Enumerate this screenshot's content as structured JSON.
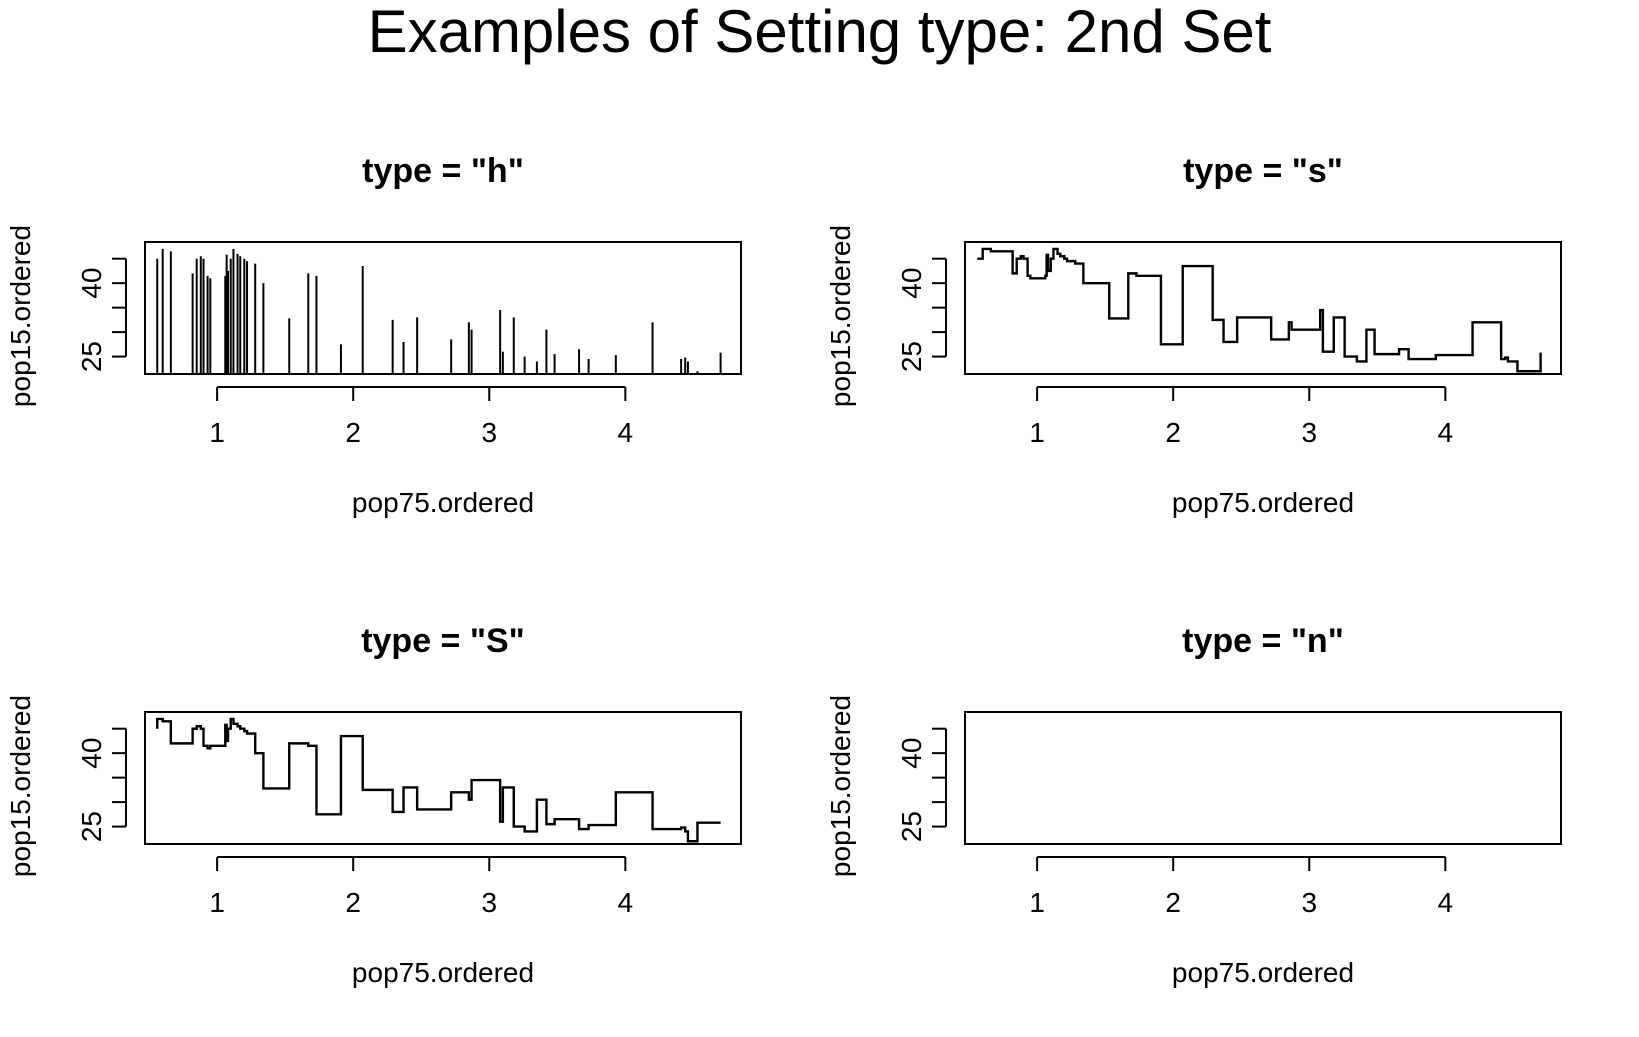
{
  "page": {
    "title": "Examples of Setting type: 2nd Set"
  },
  "chart_data": [
    {
      "type": "bar",
      "title": "type = \"h\"",
      "xlabel": "pop75.ordered",
      "ylabel": "pop15.ordered",
      "x_ticks": [
        1,
        2,
        3,
        4
      ],
      "y_ticks": [
        25,
        40
      ],
      "y_minor_ticks": [
        30,
        35,
        45
      ],
      "xlim": [
        0.47,
        4.85
      ],
      "ylim": [
        21.44,
        48.41
      ],
      "x": [
        0.56,
        0.6,
        0.66,
        0.82,
        0.85,
        0.88,
        0.9,
        0.93,
        0.95,
        1.06,
        1.07,
        1.08,
        1.1,
        1.12,
        1.15,
        1.17,
        1.2,
        1.22,
        1.28,
        1.34,
        1.53,
        1.67,
        1.73,
        1.91,
        2.07,
        2.29,
        2.37,
        2.47,
        2.72,
        2.85,
        2.87,
        3.08,
        3.1,
        3.18,
        3.26,
        3.35,
        3.42,
        3.48,
        3.66,
        3.73,
        3.93,
        4.2,
        4.41,
        4.44,
        4.46,
        4.53,
        4.7
      ],
      "y": [
        45.0,
        47.0,
        46.5,
        42.0,
        45.0,
        45.5,
        45.0,
        41.5,
        41.0,
        41.5,
        45.8,
        42.5,
        45.0,
        47.0,
        46.0,
        45.5,
        45.0,
        44.5,
        44.0,
        40.0,
        32.8,
        42.0,
        41.5,
        27.5,
        43.5,
        32.5,
        28.0,
        33.0,
        28.5,
        32.0,
        30.5,
        34.5,
        26.0,
        33.0,
        25.0,
        24.0,
        30.5,
        25.5,
        26.5,
        24.5,
        25.3,
        32.0,
        24.5,
        24.8,
        24.0,
        22.0,
        25.8
      ],
      "style": {
        "series_color": "#000000"
      }
    },
    {
      "type": "line",
      "title": "type = \"s\"",
      "xlabel": "pop75.ordered",
      "ylabel": "pop15.ordered",
      "x_ticks": [
        1,
        2,
        3,
        4
      ],
      "y_ticks": [
        25,
        40
      ],
      "y_minor_ticks": [
        30,
        35,
        45
      ],
      "xlim": [
        0.47,
        4.85
      ],
      "ylim": [
        21.44,
        48.41
      ],
      "step": "horizontal-first",
      "x": [
        0.56,
        0.6,
        0.66,
        0.82,
        0.85,
        0.88,
        0.9,
        0.93,
        0.95,
        1.06,
        1.07,
        1.08,
        1.1,
        1.12,
        1.15,
        1.17,
        1.2,
        1.22,
        1.28,
        1.34,
        1.53,
        1.67,
        1.73,
        1.91,
        2.07,
        2.29,
        2.37,
        2.47,
        2.72,
        2.85,
        2.87,
        3.08,
        3.1,
        3.18,
        3.26,
        3.35,
        3.42,
        3.48,
        3.66,
        3.73,
        3.93,
        4.2,
        4.41,
        4.44,
        4.46,
        4.53,
        4.7
      ],
      "y": [
        45.0,
        47.0,
        46.5,
        42.0,
        45.0,
        45.5,
        45.0,
        41.5,
        41.0,
        41.5,
        45.8,
        42.5,
        45.0,
        47.0,
        46.0,
        45.5,
        45.0,
        44.5,
        44.0,
        40.0,
        32.8,
        42.0,
        41.5,
        27.5,
        43.5,
        32.5,
        28.0,
        33.0,
        28.5,
        32.0,
        30.5,
        34.5,
        26.0,
        33.0,
        25.0,
        24.0,
        30.5,
        25.5,
        26.5,
        24.5,
        25.3,
        32.0,
        24.5,
        24.8,
        24.0,
        22.0,
        25.8
      ],
      "style": {
        "series_color": "#000000"
      }
    },
    {
      "type": "line",
      "title": "type = \"S\"",
      "xlabel": "pop75.ordered",
      "ylabel": "pop15.ordered",
      "x_ticks": [
        1,
        2,
        3,
        4
      ],
      "y_ticks": [
        25,
        40
      ],
      "y_minor_ticks": [
        30,
        35,
        45
      ],
      "xlim": [
        0.47,
        4.85
      ],
      "ylim": [
        21.44,
        48.41
      ],
      "step": "vertical-first",
      "x": [
        0.56,
        0.6,
        0.66,
        0.82,
        0.85,
        0.88,
        0.9,
        0.93,
        0.95,
        1.06,
        1.07,
        1.08,
        1.1,
        1.12,
        1.15,
        1.17,
        1.2,
        1.22,
        1.28,
        1.34,
        1.53,
        1.67,
        1.73,
        1.91,
        2.07,
        2.29,
        2.37,
        2.47,
        2.72,
        2.85,
        2.87,
        3.08,
        3.1,
        3.18,
        3.26,
        3.35,
        3.42,
        3.48,
        3.66,
        3.73,
        3.93,
        4.2,
        4.41,
        4.44,
        4.46,
        4.53,
        4.7
      ],
      "y": [
        45.0,
        47.0,
        46.5,
        42.0,
        45.0,
        45.5,
        45.0,
        41.5,
        41.0,
        41.5,
        45.8,
        42.5,
        45.0,
        47.0,
        46.0,
        45.5,
        45.0,
        44.5,
        44.0,
        40.0,
        32.8,
        42.0,
        41.5,
        27.5,
        43.5,
        32.5,
        28.0,
        33.0,
        28.5,
        32.0,
        30.5,
        34.5,
        26.0,
        33.0,
        25.0,
        24.0,
        30.5,
        25.5,
        26.5,
        24.5,
        25.3,
        32.0,
        24.5,
        24.8,
        24.0,
        22.0,
        25.8
      ],
      "style": {
        "series_color": "#000000"
      }
    },
    {
      "type": "line",
      "title": "type = \"n\"",
      "xlabel": "pop75.ordered",
      "ylabel": "pop15.ordered",
      "x_ticks": [
        1,
        2,
        3,
        4
      ],
      "y_ticks": [
        25,
        40
      ],
      "y_minor_ticks": [
        30,
        35,
        45
      ],
      "xlim": [
        0.47,
        4.85
      ],
      "ylim": [
        21.44,
        48.41
      ],
      "x": [],
      "y": [],
      "style": {
        "series_color": "#000000"
      }
    }
  ]
}
